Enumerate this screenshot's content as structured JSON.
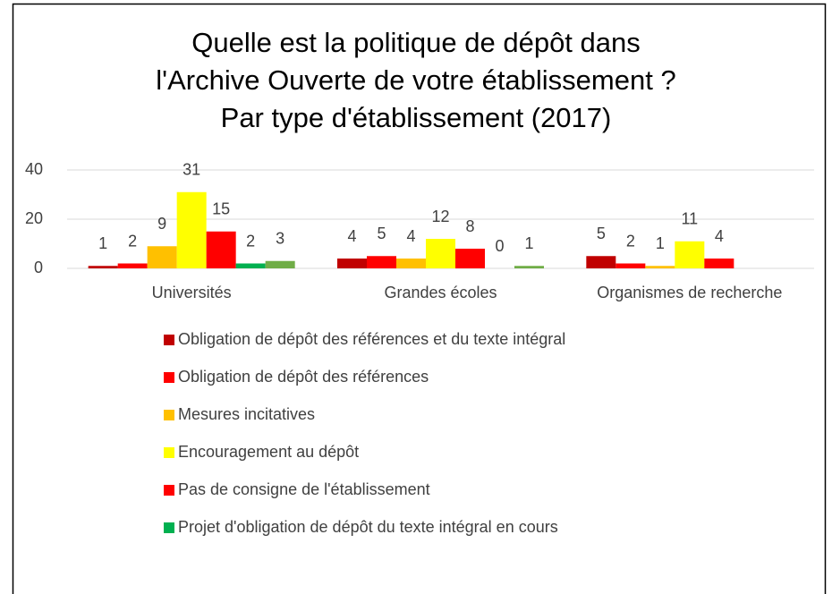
{
  "chart_data": {
    "type": "bar",
    "title": [
      "Quelle est la politique de dépôt dans",
      "l'Archive Ouverte de votre établissement ?",
      "Par type d'établissement (2017)"
    ],
    "categories": [
      "Universités",
      "Grandes écoles",
      "Organismes de recherche"
    ],
    "series": [
      {
        "name": "Obligation de dépôt des références et du texte intégral",
        "color": "#c00000",
        "values": [
          1,
          4,
          5
        ]
      },
      {
        "name": "Obligation de dépôt des références",
        "color": "#ff0000",
        "values": [
          2,
          5,
          2
        ]
      },
      {
        "name": "Mesures incitatives",
        "color": "#ffc000",
        "values": [
          9,
          4,
          1
        ]
      },
      {
        "name": "Encouragement au dépôt",
        "color": "#ffff00",
        "values": [
          31,
          12,
          11
        ]
      },
      {
        "name": "Pas de consigne de l'établissement",
        "color": "#ff0000",
        "values": [
          15,
          8,
          4
        ]
      },
      {
        "name": "Projet d'obligation de dépôt du texte intégral en cours",
        "color": "#00b050",
        "values": [
          2,
          0,
          null
        ]
      },
      {
        "color": "#70ad47",
        "values": [
          3,
          1,
          null
        ]
      }
    ],
    "ylim": [
      0,
      40
    ],
    "yticks": [
      0,
      20,
      40
    ],
    "grid": true
  }
}
